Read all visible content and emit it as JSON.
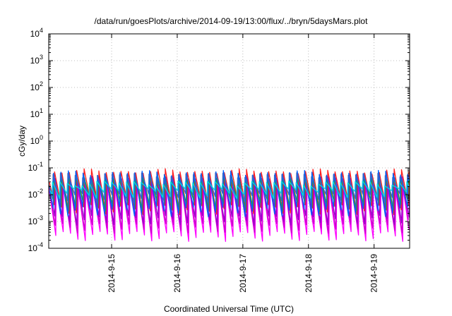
{
  "chart_data": {
    "type": "line",
    "title": "/data/run/goesPlots/archive/2014-09-19/13:00/flux/../bryn/5daysMars.plot",
    "xlabel": "Coordinated Universal Time (UTC)",
    "ylabel": "cGy/day",
    "yscale": "log",
    "ylim": [
      0.0001,
      10000
    ],
    "y_ticks": [
      {
        "value": 0.0001,
        "base": "10",
        "exp": "-4"
      },
      {
        "value": 0.001,
        "base": "10",
        "exp": "-3"
      },
      {
        "value": 0.01,
        "base": "10",
        "exp": "-2"
      },
      {
        "value": 0.1,
        "base": "10",
        "exp": "-1"
      },
      {
        "value": 1,
        "base": "10",
        "exp": "0"
      },
      {
        "value": 10,
        "base": "10",
        "exp": "1"
      },
      {
        "value": 100,
        "base": "10",
        "exp": "2"
      },
      {
        "value": 1000,
        "base": "10",
        "exp": "3"
      },
      {
        "value": 10000,
        "base": "10",
        "exp": "4"
      }
    ],
    "xlim": [
      "2014-09-14T01:00",
      "2014-09-19T13:00"
    ],
    "x_ticks": [
      "2014-9-15",
      "2014-9-16",
      "2014-9-17",
      "2014-9-18",
      "2014-9-19"
    ],
    "x_tick_dates": [
      "2014-09-15",
      "2014-09-16",
      "2014-09-17",
      "2014-09-18",
      "2014-09-19"
    ],
    "grid": true,
    "pattern": "sawtooth",
    "cycle_hours": 2.7,
    "series": [
      {
        "color": "#ff00ff",
        "peak": 0.02,
        "trough": 0.0003
      },
      {
        "color": "#cc00cc",
        "peak": 0.025,
        "trough": 0.0006
      },
      {
        "color": "#9900cc",
        "peak": 0.04,
        "trough": 0.0012
      },
      {
        "color": "#ff2020",
        "peak": 0.075,
        "trough": 0.003
      },
      {
        "color": "#22aa22",
        "peak": 0.045,
        "trough": 0.004
      },
      {
        "color": "#0060ff",
        "peak": 0.065,
        "trough": 0.0025
      },
      {
        "color": "#3366cc",
        "peak": 0.055,
        "trough": 0.008
      },
      {
        "color": "#00dddd",
        "peak": 0.028,
        "trough": 0.012
      }
    ]
  }
}
